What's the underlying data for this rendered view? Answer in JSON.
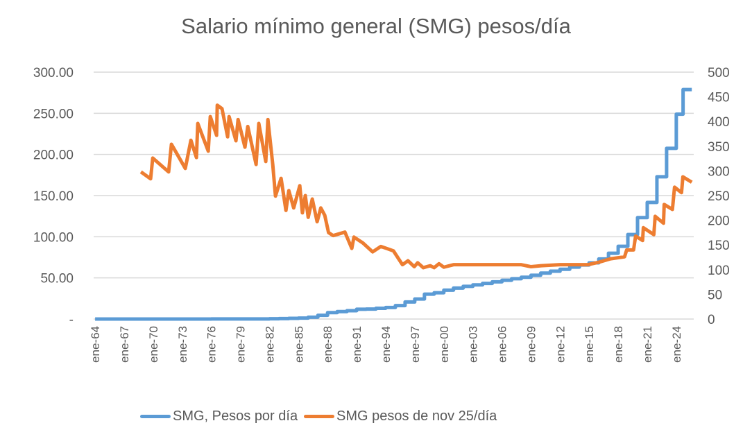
{
  "chart_data": {
    "type": "line",
    "title": "Salario mínimo general (SMG) pesos/día",
    "xlabel": "",
    "ylabel": "",
    "y2label": "",
    "xlim": [
      1963.85,
      2025.8
    ],
    "ylim": [
      0,
      300
    ],
    "y2lim": [
      0,
      500
    ],
    "grid": true,
    "legend": "bottom",
    "x_tick_labels": [
      {
        "x": 1964,
        "label": "ene-64"
      },
      {
        "x": 1967,
        "label": "ene-67"
      },
      {
        "x": 1970,
        "label": "ene-70"
      },
      {
        "x": 1973,
        "label": "ene-73"
      },
      {
        "x": 1976,
        "label": "ene-76"
      },
      {
        "x": 1979,
        "label": "ene-79"
      },
      {
        "x": 1982,
        "label": "ene-82"
      },
      {
        "x": 1985,
        "label": "ene-85"
      },
      {
        "x": 1988,
        "label": "ene-88"
      },
      {
        "x": 1991,
        "label": "ene-91"
      },
      {
        "x": 1994,
        "label": "ene-94"
      },
      {
        "x": 1997,
        "label": "ene-97"
      },
      {
        "x": 2000,
        "label": "ene-00"
      },
      {
        "x": 2003,
        "label": "ene-03"
      },
      {
        "x": 2006,
        "label": "ene-06"
      },
      {
        "x": 2009,
        "label": "ene-09"
      },
      {
        "x": 2012,
        "label": "ene-12"
      },
      {
        "x": 2015,
        "label": "ene-15"
      },
      {
        "x": 2018,
        "label": "ene-18"
      },
      {
        "x": 2021,
        "label": "ene-21"
      },
      {
        "x": 2024,
        "label": "ene-24"
      }
    ],
    "y_tick_labels": [
      {
        "v": 0,
        "label": "-"
      },
      {
        "v": 50,
        "label": "50.00"
      },
      {
        "v": 100,
        "label": "100.00"
      },
      {
        "v": 150,
        "label": "150.00"
      },
      {
        "v": 200,
        "label": "200.00"
      },
      {
        "v": 250,
        "label": "250.00"
      },
      {
        "v": 300,
        "label": "300.00"
      }
    ],
    "y2_tick_labels": [
      {
        "v": 0,
        "label": "0"
      },
      {
        "v": 50,
        "label": "50"
      },
      {
        "v": 100,
        "label": "100"
      },
      {
        "v": 150,
        "label": "150"
      },
      {
        "v": 200,
        "label": "200"
      },
      {
        "v": 250,
        "label": "250"
      },
      {
        "v": 300,
        "label": "300"
      },
      {
        "v": 350,
        "label": "350"
      },
      {
        "v": 400,
        "label": "400"
      },
      {
        "v": 450,
        "label": "450"
      },
      {
        "v": 500,
        "label": "500"
      }
    ],
    "series": [
      {
        "name": "SMG, Pesos por día",
        "axis": "left",
        "color": "#5B9BD5",
        "step": true,
        "end": 2025.6,
        "points": [
          [
            1964,
            0.02
          ],
          [
            1966,
            0.02
          ],
          [
            1968,
            0.03
          ],
          [
            1970,
            0.03
          ],
          [
            1972,
            0.04
          ],
          [
            1974,
            0.05
          ],
          [
            1976,
            0.08
          ],
          [
            1978,
            0.11
          ],
          [
            1980,
            0.15
          ],
          [
            1982,
            0.33
          ],
          [
            1983,
            0.49
          ],
          [
            1984,
            0.8
          ],
          [
            1985,
            1.2
          ],
          [
            1986,
            2.2
          ],
          [
            1987,
            4.5
          ],
          [
            1988,
            7.8
          ],
          [
            1989,
            9.1
          ],
          [
            1990,
            10.1
          ],
          [
            1991,
            11.9
          ],
          [
            1992,
            12.1
          ],
          [
            1993,
            13.1
          ],
          [
            1994,
            14.0
          ],
          [
            1995,
            16.3
          ],
          [
            1996,
            20.7
          ],
          [
            1997,
            24.3
          ],
          [
            1998,
            30.2
          ],
          [
            1999,
            31.9
          ],
          [
            2000,
            35.1
          ],
          [
            2001,
            37.6
          ],
          [
            2002,
            39.7
          ],
          [
            2003,
            41.5
          ],
          [
            2004,
            43.3
          ],
          [
            2005,
            45.2
          ],
          [
            2006,
            47.1
          ],
          [
            2007,
            49.0
          ],
          [
            2008,
            50.8
          ],
          [
            2009,
            53.2
          ],
          [
            2010,
            55.8
          ],
          [
            2011,
            58.1
          ],
          [
            2012,
            60.5
          ],
          [
            2013,
            63.1
          ],
          [
            2014,
            65.6
          ],
          [
            2015,
            68.3
          ],
          [
            2016,
            73.0
          ],
          [
            2017,
            80.0
          ],
          [
            2018,
            88.4
          ],
          [
            2019,
            102.7
          ],
          [
            2020,
            123.2
          ],
          [
            2021,
            141.7
          ],
          [
            2022,
            172.9
          ],
          [
            2023,
            207.4
          ],
          [
            2024,
            248.9
          ],
          [
            2024.7,
            278.8
          ]
        ]
      },
      {
        "name": "SMG pesos de nov 25/día",
        "axis": "right",
        "color": "#ED7D31",
        "step": false,
        "points": [
          [
            1968.73,
            298
          ],
          [
            1969.73,
            284
          ],
          [
            1969.95,
            326
          ],
          [
            1971.59,
            298
          ],
          [
            1971.88,
            354
          ],
          [
            1973.31,
            305
          ],
          [
            1973.89,
            362
          ],
          [
            1974.46,
            327
          ],
          [
            1974.6,
            396
          ],
          [
            1975.68,
            340
          ],
          [
            1975.89,
            410
          ],
          [
            1976.54,
            372
          ],
          [
            1976.61,
            433
          ],
          [
            1977.1,
            426
          ],
          [
            1977.68,
            369
          ],
          [
            1977.83,
            410
          ],
          [
            1978.54,
            361
          ],
          [
            1978.76,
            404
          ],
          [
            1979.47,
            348
          ],
          [
            1979.76,
            390
          ],
          [
            1980.62,
            313
          ],
          [
            1980.9,
            396
          ],
          [
            1981.62,
            319
          ],
          [
            1981.84,
            404
          ],
          [
            1982.34,
            313
          ],
          [
            1982.62,
            249
          ],
          [
            1983.2,
            285
          ],
          [
            1983.7,
            220
          ],
          [
            1984.0,
            260
          ],
          [
            1984.5,
            225
          ],
          [
            1985.13,
            270
          ],
          [
            1985.4,
            215
          ],
          [
            1985.7,
            250
          ],
          [
            1986.0,
            206
          ],
          [
            1986.42,
            243
          ],
          [
            1986.92,
            197
          ],
          [
            1987.3,
            225
          ],
          [
            1987.71,
            210
          ],
          [
            1988.1,
            175
          ],
          [
            1988.57,
            169
          ],
          [
            1989.79,
            176
          ],
          [
            1990.5,
            143
          ],
          [
            1990.72,
            166
          ],
          [
            1991.65,
            154
          ],
          [
            1992.65,
            136
          ],
          [
            1993.5,
            147
          ],
          [
            1994.09,
            143
          ],
          [
            1994.8,
            138
          ],
          [
            1995.73,
            110
          ],
          [
            1996.3,
            118
          ],
          [
            1996.95,
            106
          ],
          [
            1997.3,
            114
          ],
          [
            1997.88,
            104
          ],
          [
            1998.6,
            108
          ],
          [
            1999.0,
            104
          ],
          [
            1999.5,
            112
          ],
          [
            2000,
            105
          ],
          [
            2001,
            110
          ],
          [
            2003,
            110
          ],
          [
            2006,
            110
          ],
          [
            2008,
            110
          ],
          [
            2009,
            106
          ],
          [
            2010.06,
            108
          ],
          [
            2012,
            110
          ],
          [
            2014.86,
            110
          ],
          [
            2016,
            115
          ],
          [
            2017.22,
            122
          ],
          [
            2018.66,
            126
          ],
          [
            2018.88,
            140
          ],
          [
            2019.59,
            140
          ],
          [
            2019.8,
            168
          ],
          [
            2020.52,
            159
          ],
          [
            2020.6,
            185
          ],
          [
            2021.68,
            171
          ],
          [
            2021.82,
            208
          ],
          [
            2022.68,
            194
          ],
          [
            2022.75,
            232
          ],
          [
            2023.6,
            222
          ],
          [
            2023.82,
            267
          ],
          [
            2024.54,
            256
          ],
          [
            2024.68,
            288
          ],
          [
            2025.6,
            277
          ]
        ]
      }
    ]
  }
}
